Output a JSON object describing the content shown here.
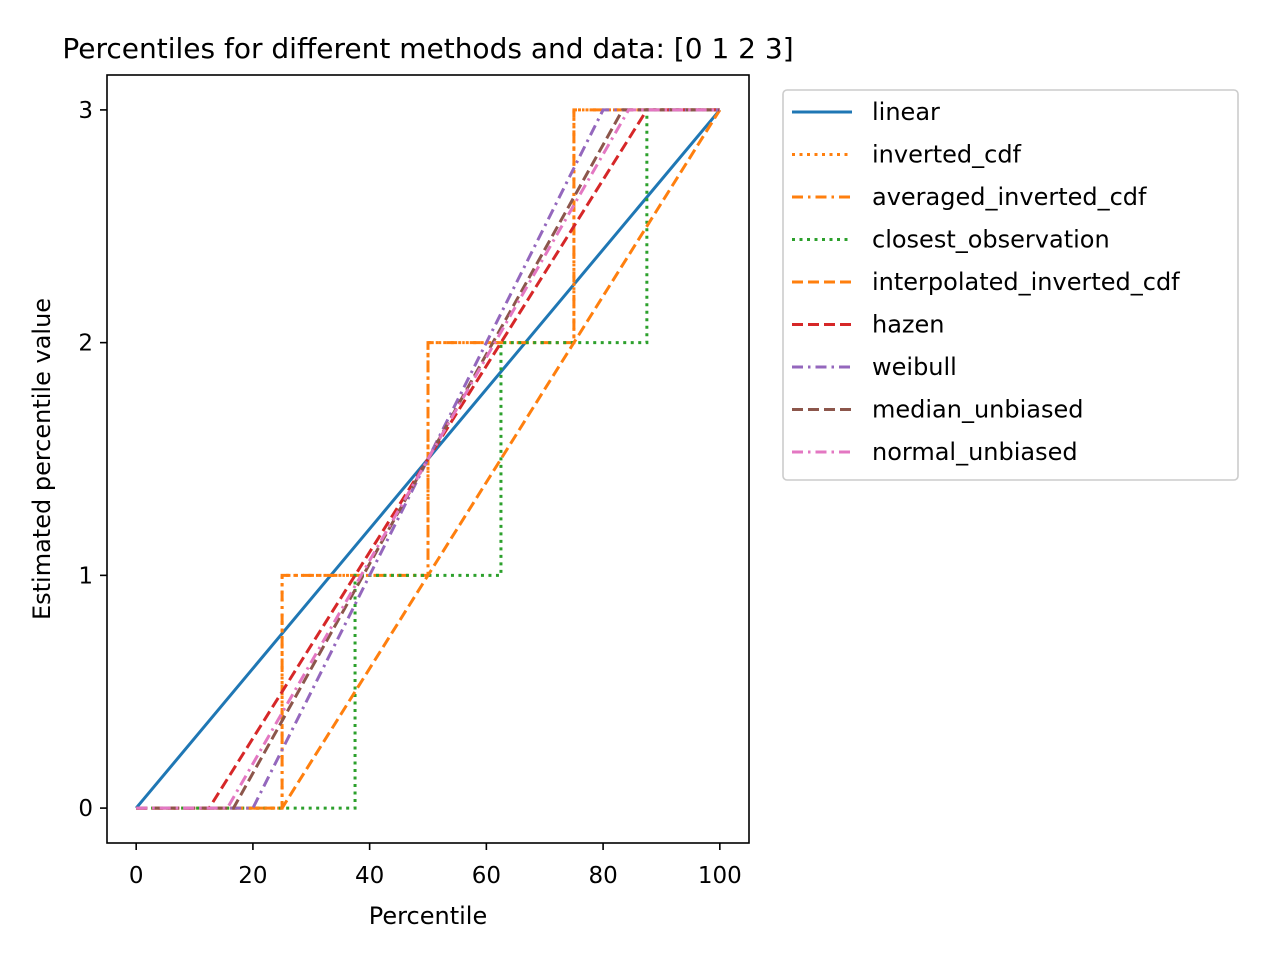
{
  "chart_data": {
    "type": "line",
    "title": "Percentiles for different methods and data: [0 1 2 3]",
    "xlabel": "Percentile",
    "ylabel": "Estimated percentile value",
    "xlim": [
      -5,
      105
    ],
    "ylim": [
      -0.15,
      3.15
    ],
    "xticks": [
      0,
      20,
      40,
      60,
      80,
      100
    ],
    "yticks": [
      0,
      1,
      2,
      3
    ],
    "grid": false,
    "legend_position": "outside-right",
    "series": [
      {
        "name": "linear",
        "color": "#1f77b4",
        "dash": "solid",
        "x": [
          0,
          100
        ],
        "y": [
          0,
          3
        ]
      },
      {
        "name": "inverted_cdf",
        "color": "#ff7f0e",
        "dash": "dotted",
        "x": [
          0,
          25,
          25,
          50,
          50,
          75,
          75,
          100
        ],
        "y": [
          0,
          0,
          1,
          1,
          2,
          2,
          3,
          3
        ]
      },
      {
        "name": "averaged_inverted_cdf",
        "color": "#ff7f0e",
        "dash": "dashdot",
        "x": [
          0,
          25,
          25,
          50,
          50,
          75,
          75,
          100
        ],
        "y": [
          0,
          0,
          1,
          1,
          2,
          2,
          3,
          3
        ]
      },
      {
        "name": "closest_observation",
        "color": "#2ca02c",
        "dash": "dotted",
        "x": [
          0,
          37.5,
          37.5,
          62.5,
          62.5,
          87.5,
          87.5,
          100
        ],
        "y": [
          0,
          0,
          1,
          1,
          2,
          2,
          3,
          3
        ]
      },
      {
        "name": "interpolated_inverted_cdf",
        "color": "#ff7f0e",
        "dash": "dashed",
        "x": [
          0,
          25,
          100
        ],
        "y": [
          0,
          0,
          3
        ]
      },
      {
        "name": "hazen",
        "color": "#d62728",
        "dash": "dashed",
        "x": [
          0,
          12.5,
          87.5,
          100
        ],
        "y": [
          0,
          0,
          3,
          3
        ]
      },
      {
        "name": "weibull",
        "color": "#9467bd",
        "dash": "dashdot",
        "x": [
          0,
          20,
          80,
          100
        ],
        "y": [
          0,
          0,
          3,
          3
        ]
      },
      {
        "name": "median_unbiased",
        "color": "#8c564b",
        "dash": "dashed",
        "x": [
          0,
          16.667,
          83.333,
          100
        ],
        "y": [
          0,
          0,
          3,
          3
        ]
      },
      {
        "name": "normal_unbiased",
        "color": "#e377c2",
        "dash": "dashdot",
        "x": [
          0,
          15.625,
          84.375,
          100
        ],
        "y": [
          0,
          0,
          3,
          3
        ]
      }
    ]
  }
}
